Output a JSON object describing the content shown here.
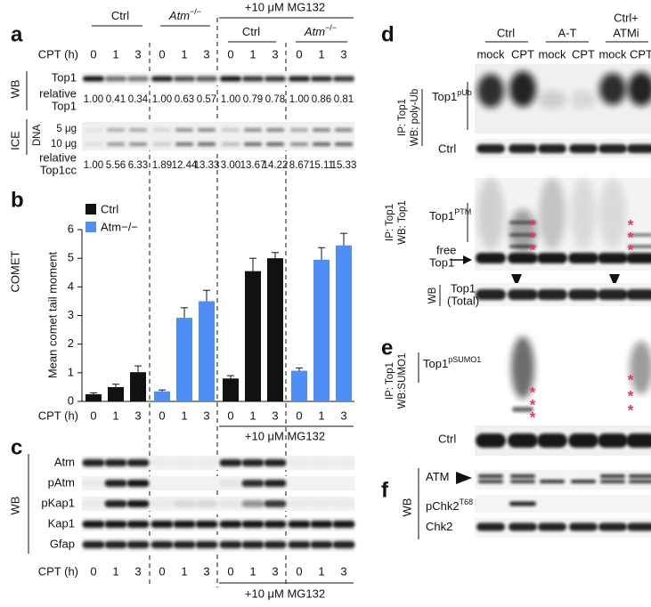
{
  "panel_a": {
    "label": "a",
    "groups": [
      {
        "text": "Ctrl"
      },
      {
        "text": "Atm",
        "sup": "−/−"
      }
    ],
    "mg132_header": "+10 μM MG132",
    "mg132_groups": [
      {
        "text": "Ctrl"
      },
      {
        "text": "Atm",
        "sup": "−/−"
      }
    ],
    "cpt_label": "CPT (h)",
    "cpt": [
      "0",
      "1",
      "3",
      "0",
      "1",
      "3",
      "0",
      "1",
      "3",
      "0",
      "1",
      "3"
    ],
    "wb_label": "WB",
    "top1_label": "Top1",
    "relative_top1_label": [
      "relative",
      "Top1"
    ],
    "relative_top1": [
      "1.00",
      "0.41",
      "0.34",
      "1.00",
      "0.63",
      "0.57",
      "1.00",
      "0.79",
      "0.78",
      "1.00",
      "0.86",
      "0.81"
    ],
    "ice_label": "ICE",
    "dna_label": "DNA",
    "dna_amounts": [
      "5 μg",
      "10 μg"
    ],
    "relative_top1cc_label": [
      "relative",
      "Top1cc"
    ],
    "relative_top1cc": [
      "1.00",
      "5.56",
      "6.33",
      "1.89",
      "12.44",
      "13.33",
      "3.00",
      "13.67",
      "14.22",
      "8.67",
      "15.11",
      "15.33"
    ]
  },
  "chart_data": {
    "type": "bar",
    "panel_label": "b",
    "side_label": "COMET",
    "y_label": "Mean comet tail moment",
    "x_label": "CPT (h)",
    "annotation": "+10 μM MG132",
    "categories": [
      "0",
      "1",
      "3",
      "0",
      "1",
      "3",
      "0",
      "1",
      "3",
      "0",
      "1",
      "3"
    ],
    "series": [
      {
        "name": "Ctrl",
        "color": "#111111",
        "values": [
          0.25,
          0.5,
          1.02,
          null,
          null,
          null,
          0.8,
          4.55,
          5.0,
          null,
          null,
          null
        ],
        "errors": [
          0.05,
          0.1,
          0.22,
          null,
          null,
          null,
          0.1,
          0.45,
          0.2,
          null,
          null,
          null
        ]
      },
      {
        "name": "Atm−/−",
        "color": "#4f8ef7",
        "values": [
          null,
          null,
          null,
          0.35,
          2.92,
          3.5,
          null,
          null,
          null,
          1.07,
          4.95,
          5.45
        ],
        "errors": [
          null,
          null,
          null,
          0.05,
          0.35,
          0.38,
          null,
          null,
          null,
          0.1,
          0.42,
          0.42
        ]
      }
    ],
    "ylim": [
      0,
      6
    ],
    "yticks": [
      0,
      1,
      2,
      3,
      4,
      5,
      6
    ],
    "legend": "upper-left"
  },
  "panel_c": {
    "label": "c",
    "wb_label": "WB",
    "bands": [
      "Atm",
      "pAtm",
      "pKap1",
      "Kap1",
      "Gfap"
    ],
    "cpt_label": "CPT (h)",
    "cpt": [
      "0",
      "1",
      "3",
      "0",
      "1",
      "3",
      "0",
      "1",
      "3",
      "0",
      "1",
      "3"
    ],
    "mg132": "+10 μM MG132"
  },
  "panel_d": {
    "label": "d",
    "groups": [
      [
        "Ctrl"
      ],
      [
        "A-T"
      ],
      [
        "Ctrl+",
        "ATMi"
      ]
    ],
    "lanes": [
      "mock",
      "CPT",
      "mock",
      "CPT",
      "mock",
      "CPT"
    ],
    "ub_blot": {
      "ip_label": [
        "IP: Top1",
        "WB: poly-Ub"
      ],
      "band": {
        "text": "Top1",
        "sup": "pUb"
      },
      "loading": "Ctrl"
    },
    "top1_blot": {
      "ip_label": [
        "IP: Top1",
        "WB: Top1"
      ],
      "band": {
        "text": "Top1",
        "sup": "PTM"
      },
      "free": [
        "free",
        "Top1"
      ],
      "asterisk": "*"
    },
    "total": {
      "wb_label": "WB",
      "label": [
        "Top1",
        "(Total)"
      ]
    }
  },
  "panel_e": {
    "label": "e",
    "ip_label": [
      "IP: Top1",
      "WB:SUMO1"
    ],
    "band": {
      "text": "Top1",
      "sup": "pSUMO1"
    },
    "loading": "Ctrl",
    "asterisk": "*"
  },
  "panel_f": {
    "label": "f",
    "wb_label": "WB",
    "bands": [
      {
        "text": "ATM"
      },
      {
        "text": "pChk2",
        "sup": "T68"
      },
      {
        "text": "Chk2"
      }
    ]
  }
}
